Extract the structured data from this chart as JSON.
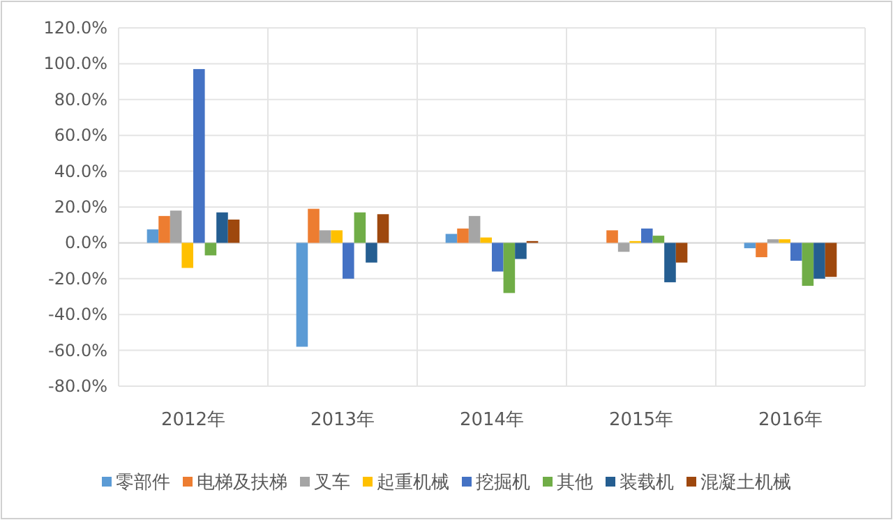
{
  "chart_data": {
    "type": "bar",
    "categories": [
      "2012年",
      "2013年",
      "2014年",
      "2015年",
      "2016年"
    ],
    "series": [
      {
        "name": "零部件",
        "color": "#5b9bd5",
        "values": [
          7.5,
          -58,
          5,
          0,
          -3
        ]
      },
      {
        "name": "电梯及扶梯",
        "color": "#ed7d31",
        "values": [
          15,
          19,
          8,
          7,
          -8
        ]
      },
      {
        "name": "叉车",
        "color": "#a5a5a5",
        "values": [
          18,
          7,
          15,
          -5,
          2
        ]
      },
      {
        "name": "起重机械",
        "color": "#ffc000",
        "values": [
          -14,
          7,
          3,
          1,
          2
        ]
      },
      {
        "name": "挖掘机",
        "color": "#4472c4",
        "values": [
          97,
          -20,
          -16,
          8,
          -10
        ]
      },
      {
        "name": "其他",
        "color": "#70ad47",
        "values": [
          -7,
          17,
          -28,
          4,
          -24
        ]
      },
      {
        "name": "装载机",
        "color": "#255e91",
        "values": [
          17,
          -11,
          -9,
          -22,
          -20
        ]
      },
      {
        "name": "混凝土机械",
        "color": "#9e480e",
        "values": [
          13,
          16,
          1,
          -11,
          -19
        ]
      }
    ],
    "ylim": [
      -80,
      120
    ],
    "yticks": [
      {
        "value": -80,
        "label": "-80.0%"
      },
      {
        "value": -60,
        "label": "-60.0%"
      },
      {
        "value": -40,
        "label": "-40.0%"
      },
      {
        "value": -20,
        "label": "-20.0%"
      },
      {
        "value": 0,
        "label": "0.0%"
      },
      {
        "value": 20,
        "label": "20.0%"
      },
      {
        "value": 40,
        "label": "40.0%"
      },
      {
        "value": 60,
        "label": "60.0%"
      },
      {
        "value": 80,
        "label": "80.0%"
      },
      {
        "value": 100,
        "label": "100.0%"
      },
      {
        "value": 120,
        "label": "120.0%"
      }
    ],
    "grid": true,
    "legend": "bottom"
  }
}
